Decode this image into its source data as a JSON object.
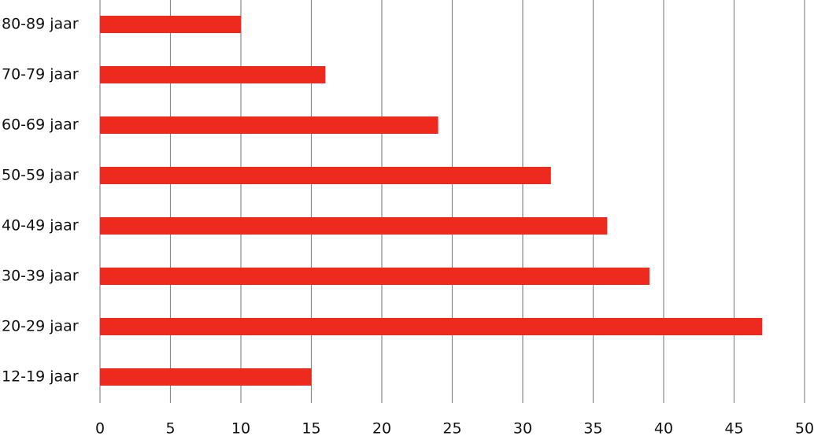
{
  "chart_data": {
    "type": "bar",
    "orientation": "horizontal",
    "categories": [
      "80-89 jaar",
      "70-79 jaar",
      "60-69 jaar",
      "50-59 jaar",
      "40-49 jaar",
      "30-39 jaar",
      "20-29 jaar",
      "12-19 jaar"
    ],
    "values": [
      10,
      16,
      24,
      32,
      36,
      39,
      47,
      15
    ],
    "color": "#ee2a1f",
    "xlim": [
      0,
      50
    ],
    "xticks": [
      0,
      5,
      10,
      15,
      20,
      25,
      30,
      35,
      40,
      45,
      50
    ],
    "grid": true
  }
}
